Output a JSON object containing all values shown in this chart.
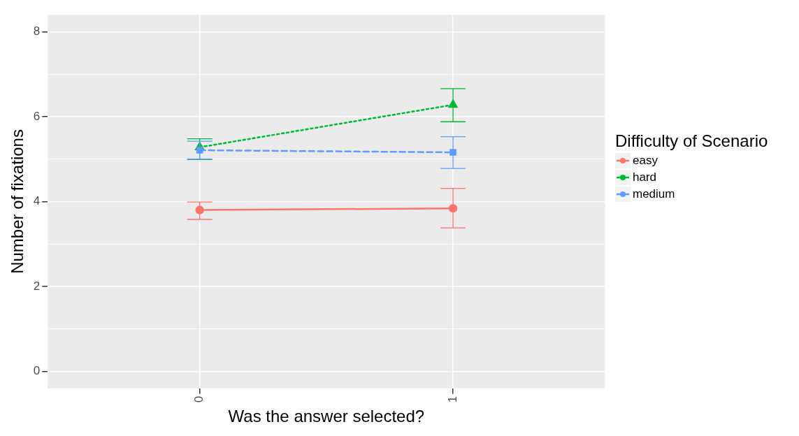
{
  "chart_data": {
    "type": "line",
    "xlabel": "Was the answer selected?",
    "ylabel": "Number of fixations",
    "legend_title": "Difficulty of Scenario",
    "categories": [
      "0",
      "1"
    ],
    "series": [
      {
        "name": "easy",
        "color": "#f8766d",
        "values": [
          3.8,
          3.84
        ],
        "errors": [
          [
            3.58,
            3.99
          ],
          [
            3.38,
            4.31
          ]
        ],
        "marker": "circle",
        "line_style": "solid"
      },
      {
        "name": "hard",
        "color": "#00ba38",
        "values": [
          5.28,
          6.28
        ],
        "errors": [
          [
            4.99,
            5.48
          ],
          [
            5.88,
            6.66
          ]
        ],
        "marker": "triangle",
        "line_style": "dotted"
      },
      {
        "name": "medium",
        "color": "#619cff",
        "values": [
          5.21,
          5.16
        ],
        "errors": [
          [
            5.0,
            5.42
          ],
          [
            4.78,
            5.53
          ]
        ],
        "marker": "square",
        "line_style": "dashed"
      }
    ],
    "ylim": [
      -0.4,
      8.4
    ],
    "yticks": [
      0,
      {
        "value": 1,
        "label": null
      },
      2,
      {
        "value": 3,
        "label": null
      },
      4,
      {
        "value": 5,
        "label": null
      },
      6,
      {
        "value": 7,
        "label": null
      },
      8
    ],
    "grid": true,
    "legend": "right"
  }
}
